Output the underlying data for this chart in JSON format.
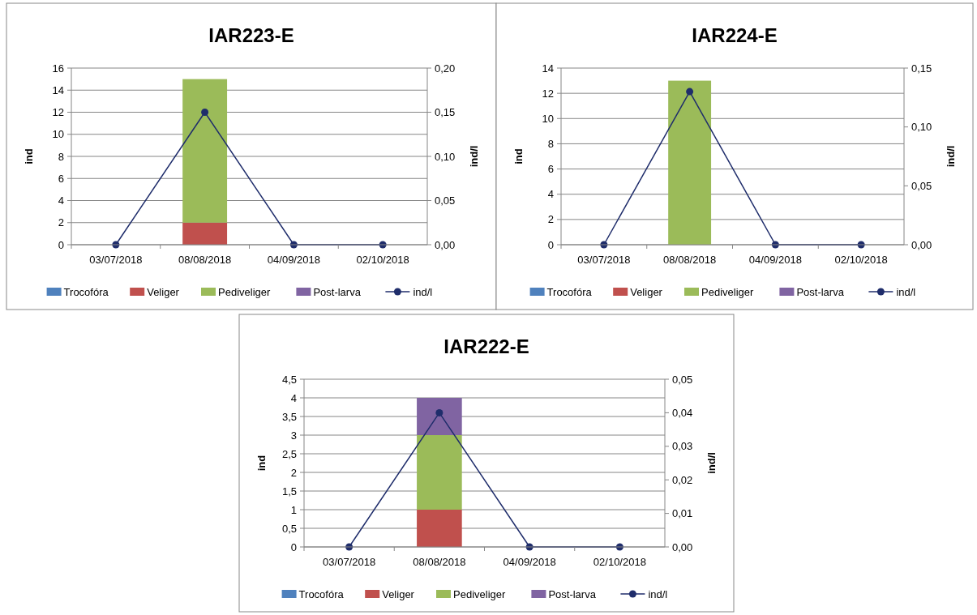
{
  "chart_data": [
    {
      "type": "bar",
      "title": "IAR223-E",
      "stacked": true,
      "categories": [
        "03/07/2018",
        "08/08/2018",
        "04/09/2018",
        "02/10/2018"
      ],
      "ylabel": "ind",
      "y2label": "ind/l",
      "ylim": [
        0,
        16
      ],
      "yticks": [
        0,
        2,
        4,
        6,
        8,
        10,
        12,
        14,
        16
      ],
      "y2lim": [
        0,
        0.2
      ],
      "y2ticks": [
        {
          "value": 0,
          "label": "0,00"
        },
        {
          "value": 0.05,
          "label": "0,05"
        },
        {
          "value": 0.1,
          "label": "0,10"
        },
        {
          "value": 0.15,
          "label": "0,15"
        },
        {
          "value": 0.2,
          "label": "0,20"
        }
      ],
      "grid": "y",
      "legend": "bottom",
      "marker": "circle",
      "line_style": "solid",
      "series": [
        {
          "name": "Trocofóra",
          "color": "#4f81bd",
          "values": [
            0,
            0,
            0,
            0
          ]
        },
        {
          "name": "Veliger",
          "color": "#c0504d",
          "values": [
            0,
            2,
            0,
            0
          ]
        },
        {
          "name": "Pediveliger",
          "color": "#9bbb59",
          "values": [
            0,
            13,
            0,
            0
          ]
        },
        {
          "name": "Post-larva",
          "color": "#8064a2",
          "values": [
            0,
            0,
            0,
            0
          ]
        },
        {
          "name": "ind/l",
          "type": "line",
          "axis": "y2",
          "color": "#1f2d6b",
          "values": [
            0,
            0.15,
            0,
            0
          ]
        }
      ]
    },
    {
      "type": "bar",
      "title": "IAR224-E",
      "stacked": true,
      "categories": [
        "03/07/2018",
        "08/08/2018",
        "04/09/2018",
        "02/10/2018"
      ],
      "ylabel": "ind",
      "y2label": "ind/l",
      "ylim": [
        0,
        14
      ],
      "yticks": [
        0,
        2,
        4,
        6,
        8,
        10,
        12,
        14
      ],
      "y2lim": [
        0,
        0.15
      ],
      "y2ticks": [
        {
          "value": 0,
          "label": "0,00"
        },
        {
          "value": 0.05,
          "label": "0,05"
        },
        {
          "value": 0.1,
          "label": "0,10"
        },
        {
          "value": 0.15,
          "label": "0,15"
        }
      ],
      "grid": "y",
      "legend": "bottom",
      "marker": "circle",
      "line_style": "solid",
      "series": [
        {
          "name": "Trocofóra",
          "color": "#4f81bd",
          "values": [
            0,
            0,
            0,
            0
          ]
        },
        {
          "name": "Veliger",
          "color": "#c0504d",
          "values": [
            0,
            0,
            0,
            0
          ]
        },
        {
          "name": "Pediveliger",
          "color": "#9bbb59",
          "values": [
            0,
            13,
            0,
            0
          ]
        },
        {
          "name": "Post-larva",
          "color": "#8064a2",
          "values": [
            0,
            0,
            0,
            0
          ]
        },
        {
          "name": "ind/l",
          "type": "line",
          "axis": "y2",
          "color": "#1f2d6b",
          "values": [
            0,
            0.13,
            0,
            0
          ]
        }
      ]
    },
    {
      "type": "bar",
      "title": "IAR222-E",
      "stacked": true,
      "categories": [
        "03/07/2018",
        "08/08/2018",
        "04/09/2018",
        "02/10/2018"
      ],
      "ylabel": "ind",
      "y2label": "ind/l",
      "ylim": [
        0,
        4.5
      ],
      "yticks": [
        0,
        {
          "value": 0.5,
          "label": "0,5"
        },
        1,
        {
          "value": 1.5,
          "label": "1,5"
        },
        2,
        {
          "value": 2.5,
          "label": "2,5"
        },
        3,
        {
          "value": 3.5,
          "label": "3,5"
        },
        4,
        {
          "value": 4.5,
          "label": "4,5"
        }
      ],
      "y2lim": [
        0,
        0.05
      ],
      "y2ticks": [
        {
          "value": 0,
          "label": "0,00"
        },
        {
          "value": 0.01,
          "label": "0,01"
        },
        {
          "value": 0.02,
          "label": "0,02"
        },
        {
          "value": 0.03,
          "label": "0,03"
        },
        {
          "value": 0.04,
          "label": "0,04"
        },
        {
          "value": 0.05,
          "label": "0,05"
        }
      ],
      "grid": "y",
      "legend": "bottom",
      "marker": "circle",
      "line_style": "solid",
      "series": [
        {
          "name": "Trocofóra",
          "color": "#4f81bd",
          "values": [
            0,
            0,
            0,
            0
          ]
        },
        {
          "name": "Veliger",
          "color": "#c0504d",
          "values": [
            0,
            1,
            0,
            0
          ]
        },
        {
          "name": "Pediveliger",
          "color": "#9bbb59",
          "values": [
            0,
            2,
            0,
            0
          ]
        },
        {
          "name": "Post-larva",
          "color": "#8064a2",
          "values": [
            0,
            1,
            0,
            0
          ]
        },
        {
          "name": "ind/l",
          "type": "line",
          "axis": "y2",
          "color": "#1f2d6b",
          "values": [
            0,
            0.04,
            0,
            0
          ]
        }
      ]
    }
  ]
}
